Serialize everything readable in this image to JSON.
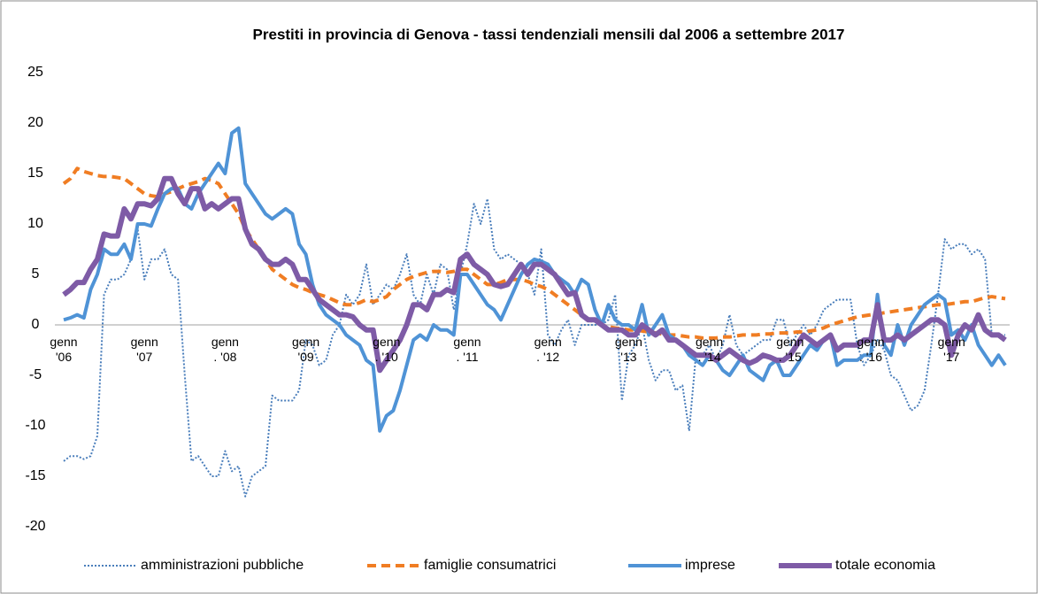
{
  "chart_data": {
    "type": "line",
    "title": "Prestiti in provincia di Genova - tassi tendenziali mensili dal 2006 a settembre 2017",
    "categories": [
      "genn\n'06",
      null,
      null,
      null,
      null,
      null,
      null,
      null,
      null,
      null,
      null,
      null,
      "genn\n'07",
      null,
      null,
      null,
      null,
      null,
      null,
      null,
      null,
      null,
      null,
      null,
      "genn\n. '08",
      null,
      null,
      null,
      null,
      null,
      null,
      null,
      null,
      null,
      null,
      null,
      "genn\n'09",
      null,
      null,
      null,
      null,
      null,
      null,
      null,
      null,
      null,
      null,
      null,
      "genn\n. '10",
      null,
      null,
      null,
      null,
      null,
      null,
      null,
      null,
      null,
      null,
      null,
      "genn\n. '11",
      null,
      null,
      null,
      null,
      null,
      null,
      null,
      null,
      null,
      null,
      null,
      "genn\n. '12",
      null,
      null,
      null,
      null,
      null,
      null,
      null,
      null,
      null,
      null,
      null,
      "genn\n'13",
      null,
      null,
      null,
      null,
      null,
      null,
      null,
      null,
      null,
      null,
      null,
      "genn\n. '14",
      null,
      null,
      null,
      null,
      null,
      null,
      null,
      null,
      null,
      null,
      null,
      "genn\n. '15",
      null,
      null,
      null,
      null,
      null,
      null,
      null,
      null,
      null,
      null,
      null,
      "genn\n. '16",
      null,
      null,
      null,
      null,
      null,
      null,
      null,
      null,
      null,
      null,
      null,
      "genn\n'17",
      null,
      null,
      null,
      null,
      null,
      null,
      null,
      null
    ],
    "series": [
      {
        "name": "amministrazioni pubbliche",
        "color": "#4a7ebb",
        "dash": "dotted",
        "width": 2,
        "values": [
          -13.5,
          -13,
          -13,
          -13.3,
          -13,
          -11,
          3,
          4.5,
          4.5,
          5,
          6.5,
          9.5,
          4.5,
          6.5,
          6.5,
          7.5,
          5,
          4.5,
          -5,
          -13.5,
          -13,
          -14,
          -15,
          -15,
          -12.5,
          -14.5,
          -14,
          -17,
          -15,
          -14.5,
          -14,
          -7,
          -7.5,
          -7.5,
          -7.5,
          -6.5,
          -1.5,
          -2,
          -4,
          -3.5,
          -1,
          0,
          3,
          2,
          3,
          6,
          2,
          3,
          4,
          3.5,
          5,
          7,
          3,
          2,
          5,
          3,
          6,
          5.5,
          1.5,
          5,
          8,
          12,
          10,
          12.5,
          7.5,
          6.5,
          7,
          6.5,
          6,
          5,
          3,
          7.5,
          -1,
          -2,
          -0.5,
          0.5,
          -2,
          0,
          0,
          0,
          0,
          0.5,
          3,
          -7.5,
          -3,
          -2,
          0,
          -3.5,
          -5.5,
          -4.5,
          -4.5,
          -6.5,
          -6,
          -10.5,
          -3,
          -3,
          -2,
          -3.5,
          -2,
          1,
          -2,
          -3,
          -2.5,
          -2,
          -1.5,
          -1.5,
          0.5,
          0.5,
          -2,
          -1,
          0,
          -1,
          0,
          1.5,
          2,
          2.5,
          2.5,
          2.5,
          -2,
          -4,
          -3,
          -1.5,
          -2.5,
          -5,
          -5.5,
          -7,
          -8.5,
          -8,
          -6.5,
          -2,
          3,
          8.5,
          7.5,
          8,
          8,
          7,
          7.5,
          6.5,
          -1,
          -1,
          -1
        ]
      },
      {
        "name": "famiglie consumatrici",
        "color": "#f07d23",
        "dash": "dashed",
        "width": 4,
        "values": [
          14,
          14.5,
          15.5,
          15.2,
          15,
          14.8,
          14.7,
          14.7,
          14.6,
          14.5,
          14,
          13.5,
          13,
          12.8,
          12.7,
          13,
          13.2,
          13.5,
          13.8,
          14,
          14.2,
          14.5,
          14.3,
          14,
          13,
          12,
          11,
          9.5,
          8.5,
          7.5,
          6.5,
          5.5,
          5,
          4.5,
          4,
          3.7,
          3.5,
          3.2,
          3,
          2.8,
          2.5,
          2.2,
          2,
          2,
          2.2,
          2.5,
          2.3,
          2.5,
          2.8,
          3.5,
          4,
          4.5,
          4.8,
          5,
          5.2,
          5.3,
          5.3,
          5.2,
          5.3,
          5.5,
          5.5,
          5,
          4.5,
          4,
          4,
          4.2,
          4.5,
          4.5,
          4.5,
          4.3,
          4,
          3.8,
          3.5,
          3,
          2.5,
          2,
          1.5,
          1,
          0.5,
          0.3,
          0,
          -0.2,
          -0.3,
          -0.4,
          -0.5,
          -0.5,
          -0.6,
          -0.7,
          -0.8,
          -0.9,
          -1,
          -1,
          -1.1,
          -1.2,
          -1.2,
          -1.3,
          -1.3,
          -1.3,
          -1.2,
          -1.2,
          -1.1,
          -1,
          -1,
          -1,
          -0.9,
          -0.9,
          -0.8,
          -0.8,
          -0.8,
          -0.7,
          -0.7,
          -0.6,
          -0.5,
          -0.3,
          0,
          0.2,
          0.4,
          0.6,
          0.8,
          0.9,
          1,
          1.1,
          1.2,
          1.3,
          1.4,
          1.5,
          1.6,
          1.7,
          1.8,
          1.9,
          2,
          2,
          2.1,
          2.2,
          2.3,
          2.3,
          2.5,
          2.7,
          2.8,
          2.7,
          2.6
        ]
      },
      {
        "name": "imprese",
        "color": "#4f93d6",
        "dash": "solid",
        "width": 4,
        "values": [
          0.5,
          0.7,
          1,
          0.7,
          3.5,
          5,
          7.5,
          7,
          7,
          8,
          6.5,
          10,
          10,
          9.8,
          11.5,
          13,
          13.5,
          13.5,
          12,
          11.5,
          13,
          14,
          15,
          16,
          15,
          19,
          19.5,
          14,
          13,
          12,
          11,
          10.5,
          11,
          11.5,
          11,
          8,
          7,
          4,
          2,
          1,
          0.5,
          0,
          -1,
          -1.5,
          -2,
          -3.5,
          -4,
          -10.5,
          -9,
          -8.5,
          -6.5,
          -4,
          -1.5,
          -1,
          -1.5,
          0,
          -0.5,
          -0.5,
          -1,
          5,
          5,
          4,
          3,
          2,
          1.5,
          0.5,
          2,
          3.5,
          5,
          6,
          6.5,
          6.3,
          6,
          5,
          4.5,
          4,
          3,
          4.5,
          4,
          1.5,
          0,
          2,
          0.5,
          0,
          0,
          -0.5,
          2,
          -1,
          0,
          1,
          -1,
          -1.5,
          -2,
          -3,
          -3.5,
          -4,
          -3,
          -3.5,
          -4.5,
          -5,
          -4,
          -3,
          -4.5,
          -5,
          -5.5,
          -4,
          -3.5,
          -5,
          -5,
          -4,
          -3,
          -2,
          -2.5,
          -1.5,
          -1,
          -4,
          -3.5,
          -3.5,
          -3.5,
          -3,
          -3,
          3,
          -2,
          -3,
          0,
          -2,
          0,
          1,
          2,
          2.5,
          3,
          2.5,
          -1,
          -0.5,
          -1.5,
          0,
          -2,
          -3,
          -4,
          -3,
          -4
        ]
      },
      {
        "name": "totale economia",
        "color": "#7e5ba6",
        "dash": "solid",
        "width": 6,
        "values": [
          3,
          3.5,
          4.2,
          4.2,
          5.5,
          6.5,
          9,
          8.8,
          8.8,
          11.5,
          10.5,
          12,
          12,
          11.8,
          12.5,
          14.5,
          14.5,
          13,
          12,
          13.5,
          13.5,
          11.5,
          12,
          11.5,
          12,
          12.5,
          12.5,
          9.5,
          8,
          7.5,
          6.5,
          6,
          6,
          6.5,
          6,
          4.5,
          4.5,
          3.5,
          2.5,
          2,
          1.5,
          1,
          1,
          0.8,
          0,
          -0.5,
          -0.5,
          -4.5,
          -3.5,
          -2.5,
          -1.5,
          0,
          2,
          2,
          1.5,
          3,
          3,
          3.5,
          3.2,
          6.5,
          7,
          6,
          5.5,
          5,
          4,
          3.8,
          4,
          5,
          6,
          5,
          6,
          6,
          5.5,
          5,
          4,
          3,
          3.2,
          1,
          0.5,
          0.5,
          0,
          -0.5,
          -0.5,
          -0.5,
          -1,
          -1,
          0,
          -0.5,
          -1,
          -0.5,
          -1.5,
          -1.5,
          -2,
          -2.5,
          -3,
          -3,
          -3,
          -3.5,
          -3,
          -2.5,
          -3,
          -3.5,
          -3.8,
          -3.5,
          -3,
          -3.2,
          -3.5,
          -3.5,
          -3,
          -2,
          -1,
          -1.5,
          -2,
          -1.5,
          -1,
          -2.5,
          -2,
          -2,
          -2,
          -1.5,
          -1.5,
          2,
          -1.5,
          -1.5,
          -1,
          -1.5,
          -1,
          -0.5,
          0,
          0.5,
          0.5,
          0,
          -3,
          -1,
          0,
          -0.5,
          1,
          -0.5,
          -1,
          -1,
          -1.5
        ]
      }
    ],
    "ylim": [
      -20,
      25
    ],
    "yticks": [
      -20,
      -15,
      -10,
      -5,
      0,
      5,
      10,
      15,
      20,
      25
    ],
    "grid": false,
    "legend": "bottom"
  }
}
